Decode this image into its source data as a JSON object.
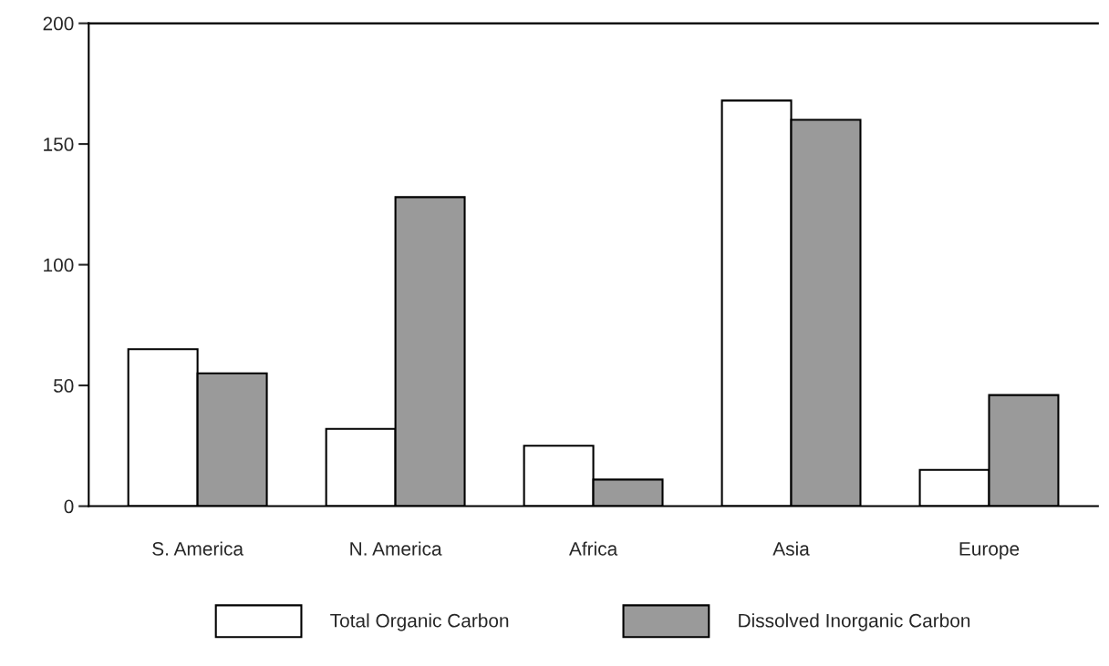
{
  "chart_data": {
    "type": "bar",
    "categories": [
      "S. America",
      "N. America",
      "Africa",
      "Asia",
      "Europe"
    ],
    "series": [
      {
        "name": "Total Organic Carbon",
        "color": "#ffffff",
        "values": [
          65,
          32,
          25,
          168,
          15
        ]
      },
      {
        "name": "Dissolved Inorganic Carbon",
        "color": "#9a9a9a",
        "values": [
          55,
          128,
          11,
          160,
          46
        ]
      }
    ],
    "ylim": [
      0,
      200
    ],
    "yticks": [
      0,
      50,
      100,
      150,
      200
    ],
    "grid": false,
    "legend": "bottom"
  }
}
